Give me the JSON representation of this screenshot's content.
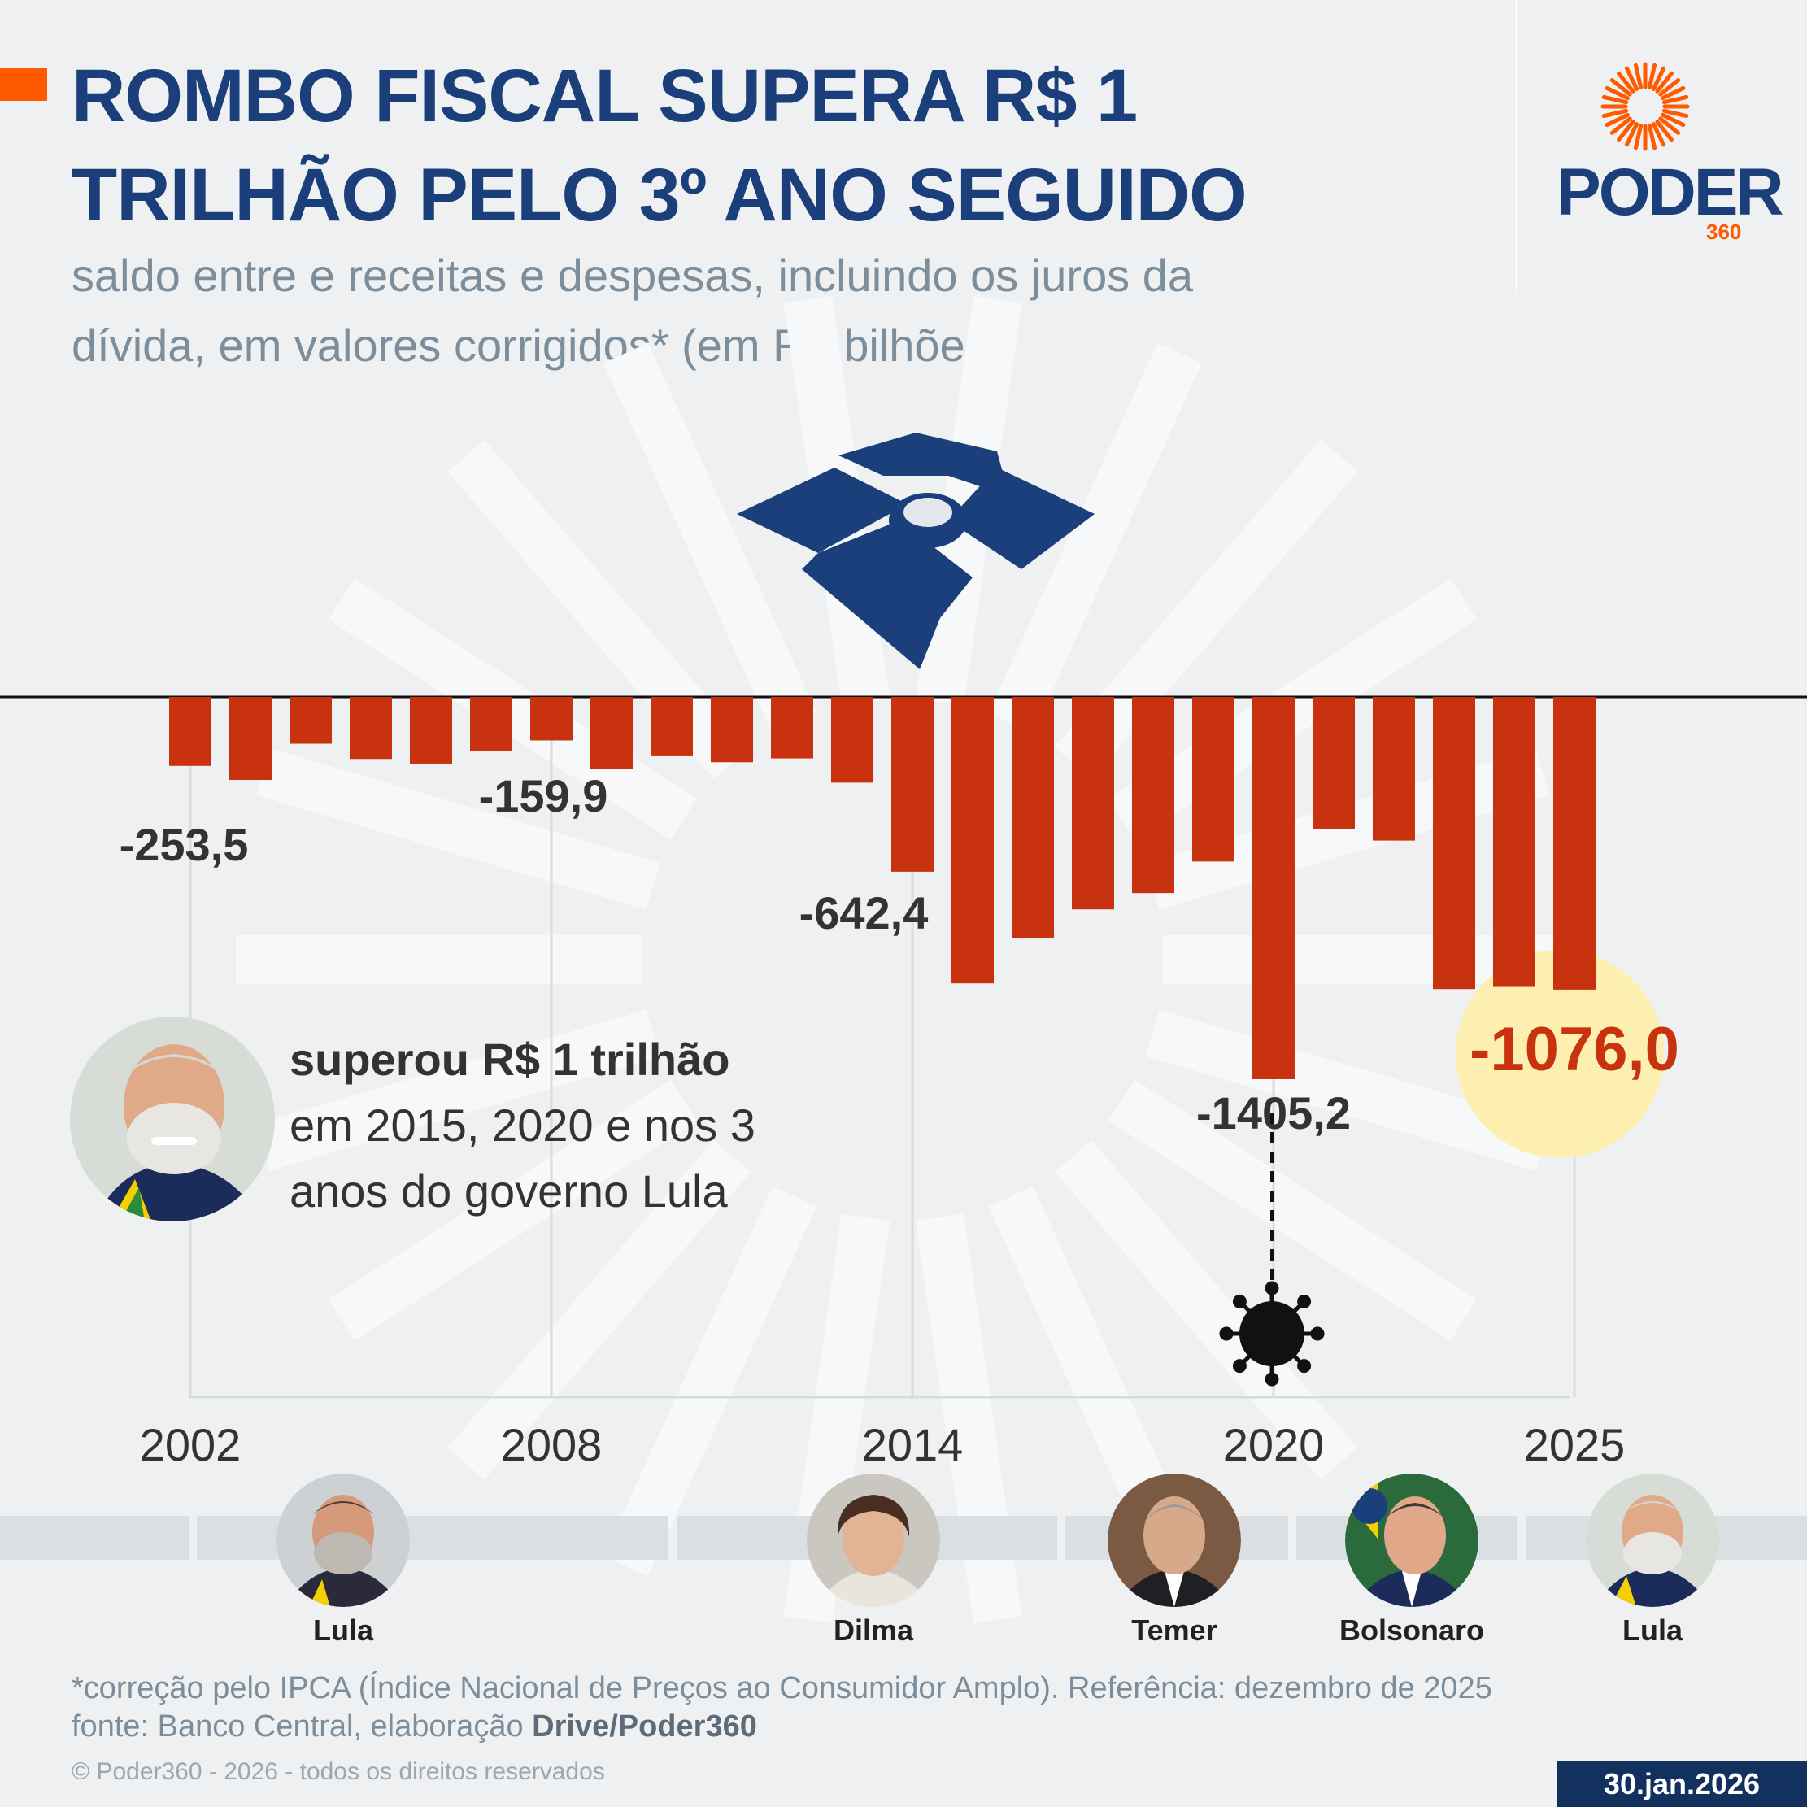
{
  "header": {
    "title_line1": "ROMBO FISCAL SUPERA R$ 1",
    "title_line2": "TRILHÃO PELO 3º ANO SEGUIDO",
    "subtitle_line1": "saldo entre e receitas e despesas, incluindo os juros da",
    "subtitle_line2": "dívida, em valores corrigidos* (em R$ bilhões)"
  },
  "brand": {
    "name": "PODER",
    "suffix": "360",
    "accent": "#ff5a00",
    "navy": "#1b3f7a"
  },
  "colors": {
    "bar": "#c8320f",
    "highlight_circle": "#fcefb0",
    "highlight_text": "#c8320f",
    "label": "#333333"
  },
  "callout": {
    "bold": "superou R$ 1 trilhão",
    "line2": "em 2015, 2020 e nos 3",
    "line3": "anos do governo Lula"
  },
  "presidents": [
    {
      "name": "Lula"
    },
    {
      "name": "Dilma"
    },
    {
      "name": "Temer"
    },
    {
      "name": "Bolsonaro"
    },
    {
      "name": "Lula"
    }
  ],
  "footnotes": {
    "line1": "*correção pelo IPCA (Índice Nacional de Preços ao Consumidor Amplo). Referência: dezembro de 2025",
    "line2_prefix": "fonte: Banco Central, elaboração ",
    "line2_bold": "Drive/Poder360",
    "copyright": "© Poder360 - 2026 - todos os direitos reservados",
    "date": "30.jan.2026"
  },
  "chart_data": {
    "type": "bar",
    "title": "ROMBO FISCAL SUPERA R$ 1 TRILHÃO PELO 3º ANO SEGUIDO",
    "ylabel": "R$ bilhões",
    "ylim": [
      -1405.2,
      0
    ],
    "categories": [
      "2002",
      "2003",
      "2004",
      "2005",
      "2006",
      "2007",
      "2008",
      "2009",
      "2010",
      "2011",
      "2012",
      "2013",
      "2014",
      "2015",
      "2016",
      "2017",
      "2018",
      "2019",
      "2020",
      "2021",
      "2022",
      "2023",
      "2024",
      "2025"
    ],
    "values": [
      -253.5,
      -305,
      -172,
      -228,
      -245,
      -200,
      -159.9,
      -264,
      -218,
      -240,
      -226,
      -315,
      -642.4,
      -1053,
      -888,
      -781,
      -721,
      -605,
      -1405.2,
      -486,
      -528,
      -1074,
      -1066,
      -1076.0
    ],
    "tick_labels": [
      "2002",
      "2008",
      "2014",
      "2020",
      "2025"
    ],
    "data_labels": [
      {
        "year": "2002",
        "text": "-253,5"
      },
      {
        "year": "2008",
        "text": "-159,9"
      },
      {
        "year": "2014",
        "text": "-642,4"
      },
      {
        "year": "2020",
        "text": "-1405,2"
      },
      {
        "year": "2025",
        "text": "-1076,0",
        "highlight": true
      }
    ]
  }
}
